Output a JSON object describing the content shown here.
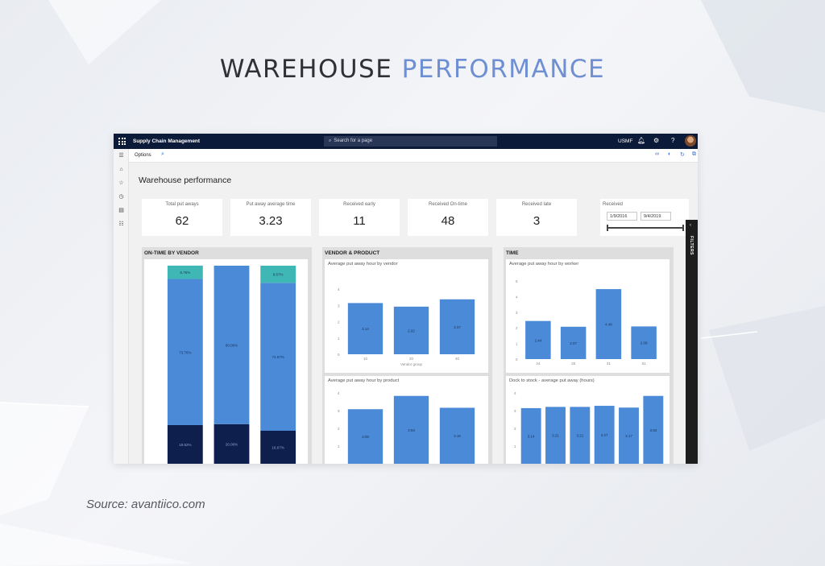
{
  "slide": {
    "title_main": "WAREHOUSE",
    "title_accent": "PERFORMANCE",
    "source": "Source: avantiico.com"
  },
  "app": {
    "name": "Supply Chain Management",
    "search_placeholder": "Search for a page",
    "company": "USMF",
    "icons": [
      "waffle-icon",
      "search-icon",
      "bell-icon",
      "gear-icon",
      "help-icon",
      "avatar"
    ]
  },
  "actionbar": {
    "options_label": "Options",
    "icons": [
      "search-icon",
      "link-icon",
      "office-icon",
      "refresh-icon",
      "popout-icon",
      "close-icon"
    ]
  },
  "sidenav": [
    "hamburger-icon",
    "home-icon",
    "star-icon",
    "clock-icon",
    "workspace-icon",
    "list-icon"
  ],
  "page": {
    "title": "Warehouse performance",
    "filters_label": "FILTERS"
  },
  "kpis": [
    {
      "label": "Total put aways",
      "value": "62"
    },
    {
      "label": "Put away average time",
      "value": "3.23"
    },
    {
      "label": "Received early",
      "value": "11"
    },
    {
      "label": "Received On-time",
      "value": "48"
    },
    {
      "label": "Received late",
      "value": "3"
    }
  ],
  "received": {
    "label": "Received",
    "from": "1/9/2016",
    "to": "9/4/2019"
  },
  "panels": {
    "vendor": "ON-TIME BY VENDOR",
    "vendor_product": "VENDOR & PRODUCT",
    "time": "TIME"
  },
  "colors": {
    "bar": "#4a8ad6",
    "dark": "#0e1f4d",
    "teal": "#3fb7b4",
    "topbar": "#0c1a3a"
  },
  "chart_data": [
    {
      "id": "ontime",
      "type": "bar",
      "stacked": true,
      "title": "",
      "ylim": [
        0,
        100
      ],
      "series": [
        {
          "name": "",
          "color": "#0e1f4d",
          "values": [
            19.52,
            20.0,
            16.67
          ],
          "labels": [
            "19.52%",
            "20.00%",
            "16.67%"
          ]
        },
        {
          "name": "",
          "color": "#4a8ad6",
          "values": [
            73.76,
            80.0,
            74.67
          ],
          "labels": [
            "73.76%",
            "80.00%",
            "74.67%"
          ]
        },
        {
          "name": "",
          "color": "#3fb7b4",
          "values": [
            6.76,
            0,
            8.67
          ],
          "labels": [
            "6.76%",
            "",
            "8.67%"
          ]
        }
      ]
    },
    {
      "id": "byvendor",
      "type": "bar",
      "title": "Average put away hour by vendor",
      "xlabel": "Vendor group",
      "categories": [
        "10",
        "20",
        "40"
      ],
      "values": [
        3.14,
        2.92,
        3.37
      ],
      "value_labels": [
        "3.14",
        "2.92",
        "3.37"
      ],
      "yticks": [
        "0",
        "1",
        "2",
        "3",
        "4"
      ],
      "ylim": [
        0,
        4
      ]
    },
    {
      "id": "byproduct",
      "type": "bar",
      "title": "Average put away hour by product",
      "categories": [
        "",
        "",
        ""
      ],
      "values": [
        3.08,
        3.83,
        3.16
      ],
      "value_labels": [
        "3.08",
        "3.83",
        "3.16"
      ],
      "yticks": [
        "1",
        "2",
        "3",
        "4"
      ],
      "ylim": [
        0,
        4
      ]
    },
    {
      "id": "byworker",
      "type": "bar",
      "title": "Average put away hour by worker",
      "categories": [
        "24",
        "25",
        "31",
        "51"
      ],
      "values": [
        2.44,
        2.07,
        4.48,
        2.09
      ],
      "value_labels": [
        "2.44",
        "2.07",
        "4.48",
        "2.09"
      ],
      "yticks": [
        "0",
        "1",
        "2",
        "3",
        "4",
        "5"
      ],
      "ylim": [
        0,
        5
      ]
    },
    {
      "id": "docktostock",
      "type": "bar",
      "title": "Dock to stock - average put away (hours)",
      "categories": [
        "",
        "",
        "",
        "",
        "",
        ""
      ],
      "values": [
        3.14,
        3.21,
        3.21,
        3.27,
        3.17,
        3.83
      ],
      "value_labels": [
        "3.14",
        "3.21",
        "3.21",
        "3.27",
        "3.17",
        "3.83"
      ],
      "yticks": [
        "1",
        "2",
        "3",
        "4"
      ],
      "ylim": [
        0,
        4
      ]
    }
  ]
}
